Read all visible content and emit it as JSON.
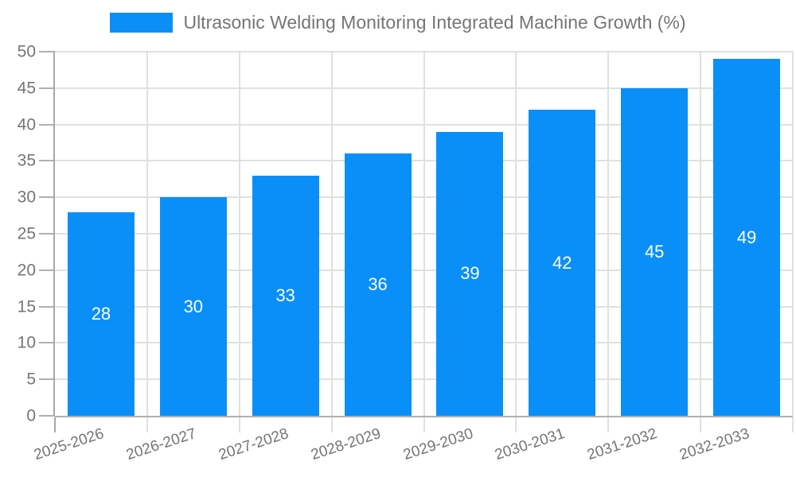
{
  "legend": {
    "label": "Ultrasonic Welding Monitoring Integrated Machine Growth (%)"
  },
  "chart_data": {
    "type": "bar",
    "title": "Ultrasonic Welding Monitoring Integrated Machine Growth (%)",
    "categories": [
      "2025-2026",
      "2026-2027",
      "2027-2028",
      "2028-2029",
      "2029-2030",
      "2030-2031",
      "2031-2032",
      "2032-2033"
    ],
    "values": [
      28,
      30,
      33,
      36,
      39,
      42,
      45,
      49
    ],
    "value_labels": [
      "28",
      "30",
      "33",
      "36",
      "39",
      "42",
      "45",
      "49"
    ],
    "ytick_labels": [
      "0",
      "5",
      "10",
      "15",
      "20",
      "25",
      "30",
      "35",
      "40",
      "45",
      "50"
    ],
    "xlabel": "",
    "ylabel": "",
    "ylim": [
      0,
      50
    ],
    "ytick_step": 5,
    "grid": "on",
    "legend_position": "top-center",
    "x_label_rotation_deg": -18
  },
  "colors": {
    "bar": "#0a8ff9",
    "value_label": "#ffffff",
    "text": "#757575",
    "grid": "#e0e0e0",
    "axis": "#b0b0b0",
    "spine": "#a8a8a8",
    "background": "#ffffff"
  }
}
